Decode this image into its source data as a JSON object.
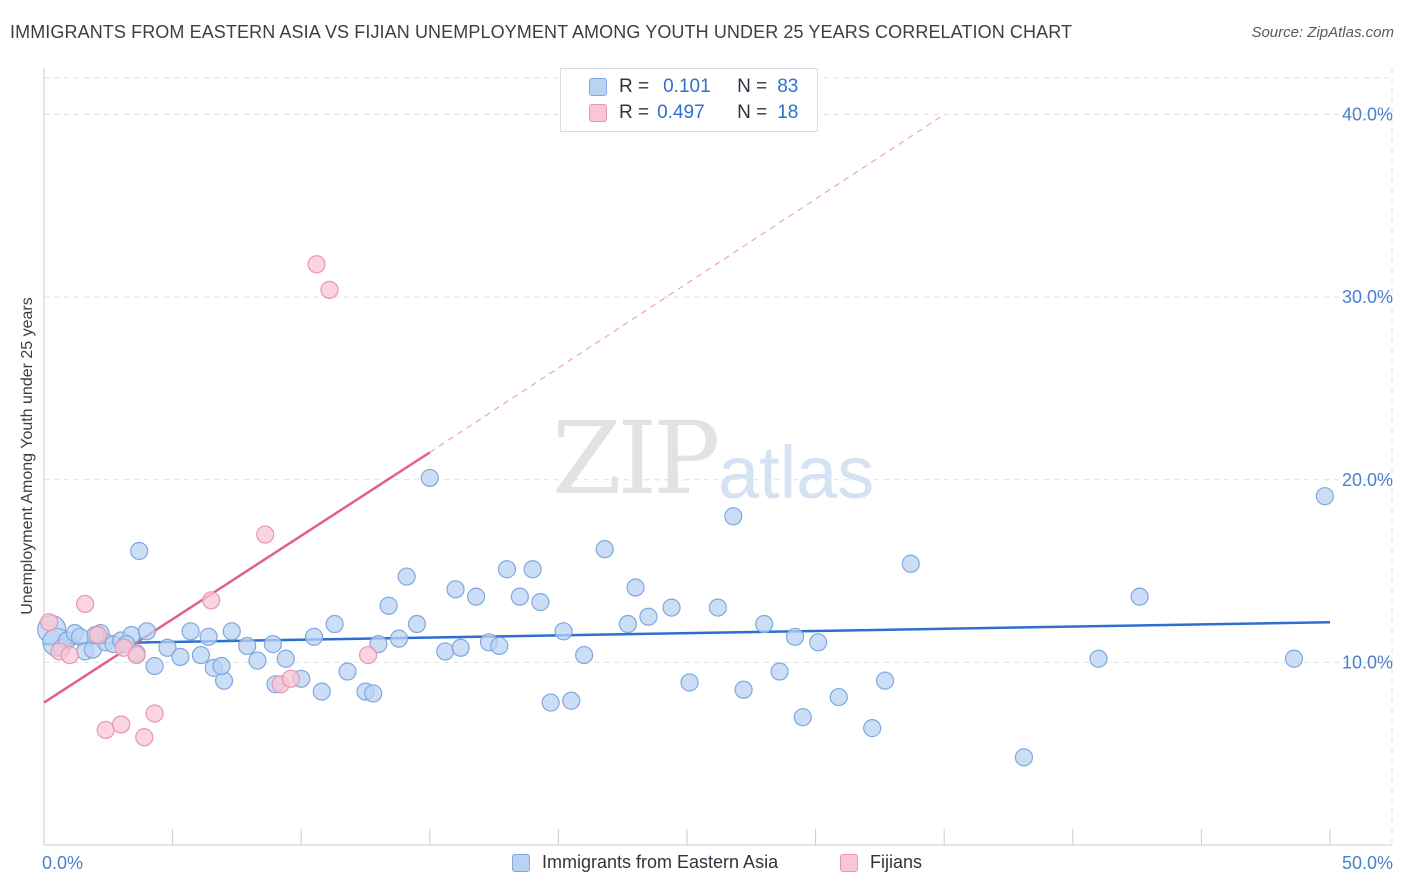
{
  "title": "IMMIGRANTS FROM EASTERN ASIA VS FIJIAN UNEMPLOYMENT AMONG YOUTH UNDER 25 YEARS CORRELATION CHART",
  "source": "Source: ZipAtlas.com",
  "watermark_main": "ZIP",
  "watermark_sub": "atlas",
  "legend": {
    "rows": [
      {
        "r_label": "R =",
        "r_value": "0.101",
        "n_label": "N =",
        "n_value": "83"
      },
      {
        "r_label": "R =",
        "r_value": "0.497",
        "n_label": "N =",
        "n_value": "18"
      }
    ]
  },
  "bottom_legend": {
    "series1": "Immigrants from Eastern Asia",
    "series2": "Fijians"
  },
  "colors": {
    "blue_fill": "#b9d3f3",
    "blue_stroke": "#7ea8e0",
    "blue_line": "#2d6fcf",
    "pink_fill": "#f8c6d5",
    "pink_stroke": "#ec95b0",
    "pink_line": "#e0608d"
  },
  "chart_data": {
    "type": "scatter",
    "title": "IMMIGRANTS FROM EASTERN ASIA VS FIJIAN UNEMPLOYMENT AMONG YOUTH UNDER 25 YEARS CORRELATION CHART",
    "xlabel": "",
    "ylabel": "Unemployment Among Youth under 25 years",
    "xlim": [
      0,
      50
    ],
    "ylim": [
      0,
      42
    ],
    "x_tick_labels": [
      "0.0%",
      "50.0%"
    ],
    "y_ticks": [
      10,
      20,
      30,
      40
    ],
    "y_tick_labels": [
      "10.0%",
      "20.0%",
      "30.0%",
      "40.0%"
    ],
    "series": [
      {
        "name": "Immigrants from Eastern Asia",
        "r": 0.101,
        "n": 83,
        "trend": {
          "x": [
            0,
            50
          ],
          "y": [
            11.0,
            12.2
          ],
          "dashed_extension": false
        },
        "points": [
          [
            0.3,
            11.8
          ],
          [
            0.5,
            11.1
          ],
          [
            0.7,
            10.8
          ],
          [
            0.9,
            11.2
          ],
          [
            1.2,
            11.6
          ],
          [
            1.4,
            11.4
          ],
          [
            1.6,
            10.6
          ],
          [
            1.9,
            10.7
          ],
          [
            2.2,
            11.6
          ],
          [
            2.4,
            11.1
          ],
          [
            2.7,
            11.0
          ],
          [
            3.0,
            11.2
          ],
          [
            3.4,
            11.5
          ],
          [
            3.6,
            10.5
          ],
          [
            3.7,
            16.1
          ],
          [
            4.0,
            11.7
          ],
          [
            4.3,
            9.8
          ],
          [
            4.8,
            10.8
          ],
          [
            5.3,
            10.3
          ],
          [
            5.7,
            11.7
          ],
          [
            6.1,
            10.4
          ],
          [
            6.4,
            11.4
          ],
          [
            6.6,
            9.7
          ],
          [
            7.0,
            9.0
          ],
          [
            7.3,
            11.7
          ],
          [
            7.9,
            10.9
          ],
          [
            8.3,
            10.1
          ],
          [
            8.9,
            11.0
          ],
          [
            9.4,
            10.2
          ],
          [
            10.0,
            9.1
          ],
          [
            10.5,
            11.4
          ],
          [
            10.8,
            8.4
          ],
          [
            11.3,
            12.1
          ],
          [
            11.8,
            9.5
          ],
          [
            12.5,
            8.4
          ],
          [
            12.8,
            8.3
          ],
          [
            13.0,
            11.0
          ],
          [
            13.4,
            13.1
          ],
          [
            13.8,
            11.3
          ],
          [
            14.1,
            14.7
          ],
          [
            14.5,
            12.1
          ],
          [
            15.0,
            20.1
          ],
          [
            15.6,
            10.6
          ],
          [
            16.0,
            14.0
          ],
          [
            16.2,
            10.8
          ],
          [
            16.8,
            13.6
          ],
          [
            17.3,
            11.1
          ],
          [
            17.7,
            10.9
          ],
          [
            18.0,
            15.1
          ],
          [
            18.5,
            13.6
          ],
          [
            19.0,
            15.1
          ],
          [
            19.3,
            13.3
          ],
          [
            19.7,
            7.8
          ],
          [
            20.2,
            11.7
          ],
          [
            20.5,
            7.9
          ],
          [
            21.0,
            10.4
          ],
          [
            21.8,
            16.2
          ],
          [
            22.7,
            12.1
          ],
          [
            23.0,
            14.1
          ],
          [
            23.5,
            12.5
          ],
          [
            24.4,
            13.0
          ],
          [
            25.1,
            8.9
          ],
          [
            26.2,
            13.0
          ],
          [
            26.8,
            18.0
          ],
          [
            27.2,
            8.5
          ],
          [
            28.0,
            12.1
          ],
          [
            28.6,
            9.5
          ],
          [
            29.2,
            11.4
          ],
          [
            29.5,
            7.0
          ],
          [
            30.1,
            11.1
          ],
          [
            30.9,
            8.1
          ],
          [
            32.2,
            6.4
          ],
          [
            32.7,
            9.0
          ],
          [
            33.7,
            15.4
          ],
          [
            38.1,
            4.8
          ],
          [
            41.0,
            10.2
          ],
          [
            42.6,
            13.6
          ],
          [
            48.6,
            10.2
          ],
          [
            49.8,
            19.1
          ],
          [
            3.2,
            11.0
          ],
          [
            2.0,
            11.5
          ],
          [
            6.9,
            9.8
          ],
          [
            9.0,
            8.8
          ]
        ]
      },
      {
        "name": "Fijians",
        "r": 0.497,
        "n": 18,
        "trend": {
          "x": [
            0,
            15
          ],
          "y": [
            7.8,
            21.5
          ],
          "dashed_extension_to": [
            35,
            40
          ]
        },
        "points": [
          [
            0.2,
            12.2
          ],
          [
            0.6,
            10.6
          ],
          [
            1.0,
            10.4
          ],
          [
            1.6,
            13.2
          ],
          [
            2.1,
            11.5
          ],
          [
            2.4,
            6.3
          ],
          [
            3.0,
            6.6
          ],
          [
            3.1,
            10.8
          ],
          [
            3.6,
            10.4
          ],
          [
            3.9,
            5.9
          ],
          [
            4.3,
            7.2
          ],
          [
            6.5,
            13.4
          ],
          [
            8.6,
            17.0
          ],
          [
            9.2,
            8.8
          ],
          [
            9.6,
            9.1
          ],
          [
            10.6,
            31.8
          ],
          [
            11.1,
            30.4
          ],
          [
            12.6,
            10.4
          ]
        ]
      }
    ]
  }
}
